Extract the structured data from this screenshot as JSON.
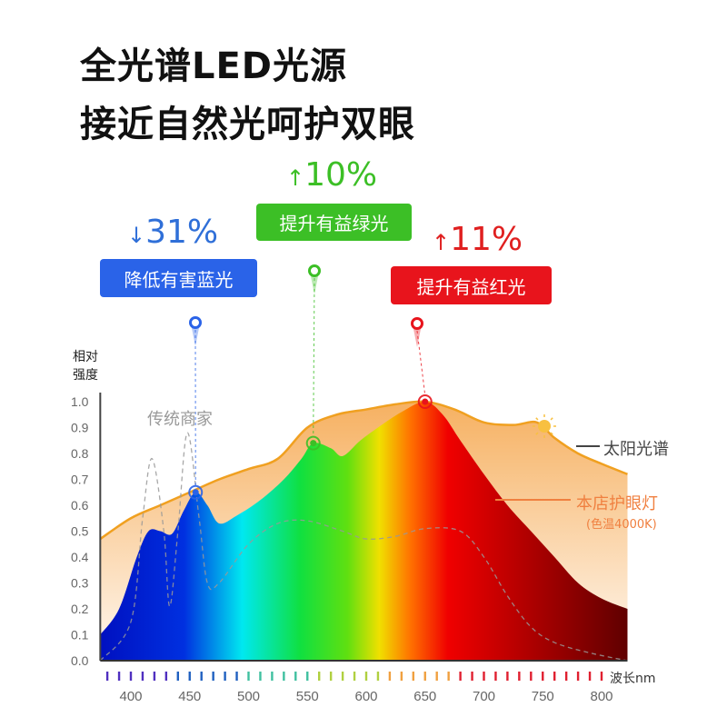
{
  "headline": {
    "line1": "全光谱LED光源",
    "line2": "接近自然光呵护双眼"
  },
  "callouts": [
    {
      "arrow": "↓",
      "percent": "31%",
      "label": "降低有害蓝光",
      "color": "#2a63e8",
      "wavelength": 455,
      "value": 0.65
    },
    {
      "arrow": "↑",
      "percent": "10%",
      "label": "提升有益绿光",
      "color": "#3cbf26",
      "wavelength": 555,
      "value": 0.84
    },
    {
      "arrow": "↑",
      "percent": "11%",
      "label": "提升有益红光",
      "color": "#e8141c",
      "wavelength": 650,
      "value": 1.0
    }
  ],
  "legend": {
    "sun": "太阳光谱",
    "led": "本店护眼灯",
    "led_note": "(色温4000K)",
    "traditional": "传统商家"
  },
  "colors": {
    "sun": "#f0a020",
    "traditional": "#888888",
    "led_note": "#f08040"
  },
  "chart_data": {
    "type": "area",
    "ylabel": "相对强度",
    "xlabel": "波长nm",
    "xticks": [
      400,
      450,
      500,
      550,
      600,
      650,
      700,
      750,
      800
    ],
    "yticks": [
      "0.0",
      "0.1",
      "0.2",
      "0.3",
      "0.4",
      "0.5",
      "0.6",
      "0.7",
      "0.8",
      "0.9",
      "1.0"
    ],
    "xlim": [
      374,
      822
    ],
    "ylim": [
      0,
      1.0
    ],
    "series": [
      {
        "name": "太阳光谱",
        "x": [
          374,
          400,
          425,
          450,
          475,
          500,
          525,
          550,
          575,
          600,
          625,
          650,
          675,
          700,
          725,
          745,
          760,
          780,
          800,
          822
        ],
        "y": [
          0.47,
          0.55,
          0.6,
          0.65,
          0.7,
          0.74,
          0.78,
          0.9,
          0.95,
          0.97,
          0.99,
          1.0,
          0.97,
          0.92,
          0.91,
          0.92,
          0.86,
          0.8,
          0.76,
          0.72
        ]
      },
      {
        "name": "本店护眼灯",
        "x": [
          374,
          390,
          405,
          415,
          425,
          435,
          445,
          455,
          465,
          475,
          490,
          510,
          530,
          545,
          555,
          570,
          580,
          595,
          610,
          630,
          650,
          665,
          680,
          700,
          720,
          740,
          760,
          780,
          800,
          822
        ],
        "y": [
          0.1,
          0.2,
          0.4,
          0.5,
          0.5,
          0.49,
          0.58,
          0.65,
          0.6,
          0.53,
          0.56,
          0.62,
          0.7,
          0.78,
          0.84,
          0.82,
          0.79,
          0.85,
          0.9,
          0.96,
          1.0,
          0.95,
          0.85,
          0.72,
          0.6,
          0.5,
          0.4,
          0.3,
          0.24,
          0.2
        ]
      },
      {
        "name": "传统商家",
        "x": [
          374,
          400,
          410,
          418,
          428,
          433,
          440,
          448,
          458,
          465,
          475,
          500,
          525,
          550,
          580,
          600,
          625,
          650,
          680,
          700,
          720,
          740,
          760,
          790,
          822
        ],
        "y": [
          0.0,
          0.15,
          0.55,
          0.78,
          0.5,
          0.21,
          0.5,
          0.88,
          0.55,
          0.3,
          0.3,
          0.45,
          0.53,
          0.54,
          0.5,
          0.47,
          0.48,
          0.51,
          0.5,
          0.4,
          0.25,
          0.13,
          0.07,
          0.03,
          0.0
        ]
      }
    ]
  }
}
